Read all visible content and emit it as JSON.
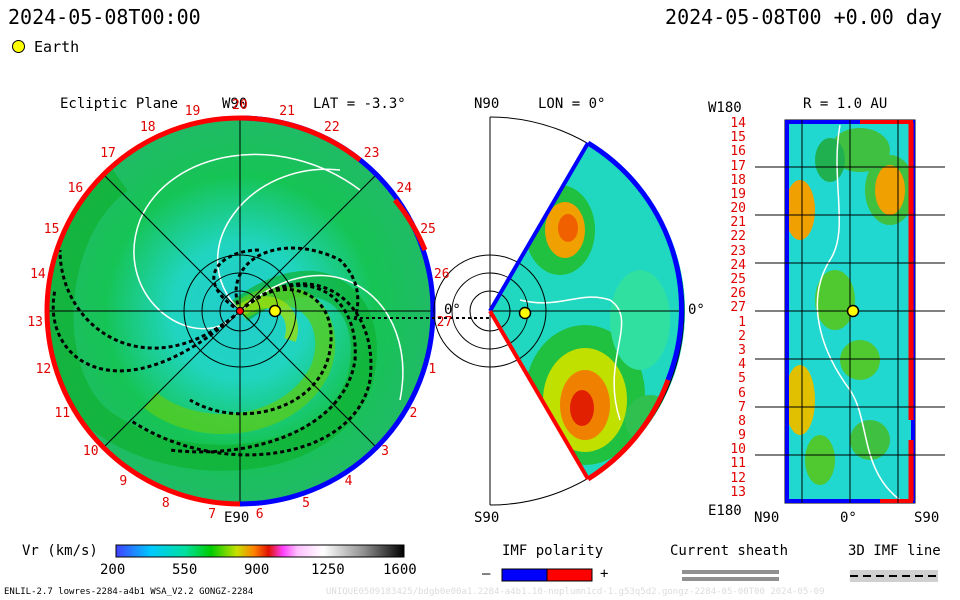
{
  "header": {
    "left_time": "2024-05-08T00:00",
    "right_time": "2024-05-08T00 +0.00 day"
  },
  "legend_top": {
    "earth_label": "Earth",
    "earth_color": "#ffff00"
  },
  "ecliptic": {
    "title": "Ecliptic Plane",
    "top_label": "W90",
    "lat_label": "LAT = -3.3°",
    "bottom_label": "E90",
    "zero_label": "0°",
    "ring_numbers": [
      "20",
      "21",
      "22",
      "23",
      "24",
      "25",
      "26",
      "27",
      "1",
      "2",
      "3",
      "4",
      "5",
      "6",
      "7",
      "8",
      "9",
      "10",
      "11",
      "12",
      "13",
      "14",
      "15",
      "16",
      "17",
      "18",
      "19"
    ]
  },
  "meridional": {
    "top_label": "N90",
    "lon_label": "LON = 0°",
    "bottom_label": "S90",
    "zero_label": "0°"
  },
  "synoptic": {
    "top_left": "W180",
    "r_label": "R = 1.0 AU",
    "bottom_left": "E180",
    "x_left": "N90",
    "x_mid": "0°",
    "x_right": "S90",
    "rows": [
      "14",
      "15",
      "16",
      "17",
      "18",
      "19",
      "20",
      "21",
      "22",
      "23",
      "24",
      "25",
      "26",
      "27",
      "1",
      "2",
      "3",
      "4",
      "5",
      "6",
      "7",
      "8",
      "9",
      "10",
      "11",
      "12",
      "13"
    ]
  },
  "colorbar": {
    "label": "Vr (km/s)",
    "ticks": [
      "200",
      "550",
      "900",
      "1250",
      "1600"
    ]
  },
  "imf": {
    "title": "IMF polarity",
    "minus": "–",
    "plus": "+",
    "neg_color": "#0000ff",
    "pos_color": "#ff0000"
  },
  "sheath": {
    "title": "Current sheath"
  },
  "imf3d": {
    "title": "3D IMF line"
  },
  "footer": {
    "left": "ENLIL-2.7 lowres-2284-a4b1 WSA_V2.2 GONGZ-2284",
    "right": "UNIQUE0509183425/bdgb0e00a1.2284-a4b1.10-noplumn1cd-1.g53q5d2.gongz-2284-05-00T00    2024-05-09"
  }
}
